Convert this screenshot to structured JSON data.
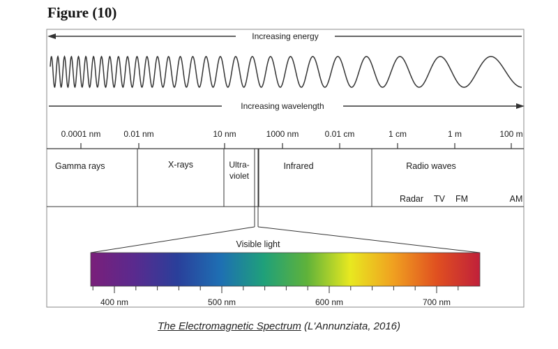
{
  "figure": {
    "label": "Figure",
    "number": "(10)"
  },
  "arrows": {
    "energy": "Increasing energy",
    "wavelength": "Increasing wavelength"
  },
  "scale_ticks": [
    "0.0001 nm",
    "0.01 nm",
    "10 nm",
    "1000 nm",
    "0.01 cm",
    "1 cm",
    "1 m",
    "100 m"
  ],
  "regions": {
    "gamma": "Gamma rays",
    "xray": "X-rays",
    "uv_line1": "Ultra-",
    "uv_line2": "violet",
    "infrared": "Infrared",
    "radio": "Radio waves"
  },
  "radio_bands": [
    "Radar",
    "TV",
    "FM",
    "AM"
  ],
  "visible": {
    "label": "Visible light",
    "ticks": [
      "400 nm",
      "500 nm",
      "600 nm",
      "700 nm"
    ],
    "colors": [
      "#7a1f7a",
      "#5a2a8e",
      "#2a3f9a",
      "#1e6fb3",
      "#1fa07a",
      "#5fb23a",
      "#e8e820",
      "#f0a020",
      "#e05020",
      "#c0203a"
    ]
  },
  "caption": {
    "title": "The Electromagnetic Spectrum",
    "source": " (L'Annunziata, 2016)"
  },
  "colors": {
    "line": "#333333",
    "frame": "#8a8a8a"
  }
}
